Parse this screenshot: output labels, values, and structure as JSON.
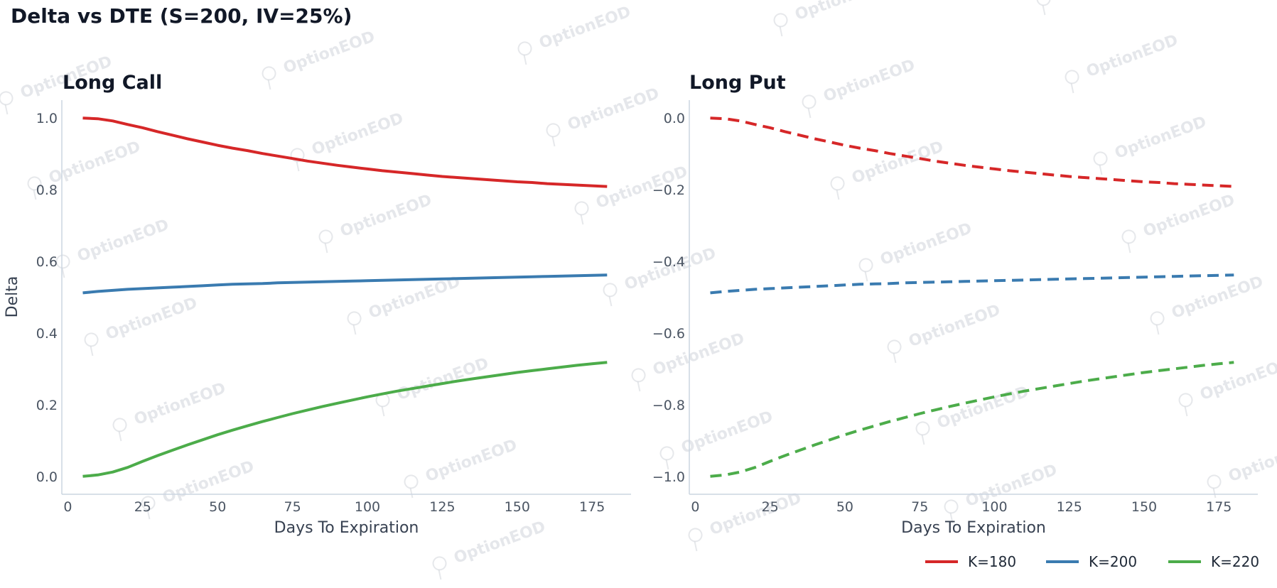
{
  "title": "Delta vs DTE (S=200, IV=25%)",
  "watermark": "OptionEOD",
  "legend": [
    {
      "label": "K=180",
      "color": "#d62728"
    },
    {
      "label": "K=200",
      "color": "#3a7bb0"
    },
    {
      "label": "K=220",
      "color": "#4cac4a"
    }
  ],
  "chart_data": [
    {
      "type": "line",
      "title": "Long Call",
      "xlabel": "Days To Expiration",
      "ylabel": "Delta",
      "xlim": [
        -2,
        188
      ],
      "ylim": [
        -0.05,
        1.05
      ],
      "xticks": [
        0,
        25,
        50,
        75,
        100,
        125,
        150,
        175
      ],
      "xtick_labels": [
        "0",
        "25",
        "50",
        "75",
        "100",
        "125",
        "150",
        "175"
      ],
      "yticks": [
        0.0,
        0.2,
        0.4,
        0.6,
        0.8,
        1.0
      ],
      "ytick_labels": [
        "0.0",
        "0.2",
        "0.4",
        "0.6",
        "0.8",
        "1.0"
      ],
      "grid": false,
      "x": [
        5,
        10,
        15,
        20,
        25,
        30,
        35,
        40,
        45,
        50,
        55,
        60,
        65,
        70,
        75,
        80,
        85,
        90,
        95,
        100,
        105,
        110,
        115,
        120,
        125,
        130,
        135,
        140,
        145,
        150,
        155,
        160,
        165,
        170,
        175,
        180
      ],
      "series": [
        {
          "name": "K=180",
          "style": "solid",
          "values": [
            1.0,
            0.998,
            0.992,
            0.982,
            0.973,
            0.962,
            0.952,
            0.942,
            0.933,
            0.924,
            0.916,
            0.909,
            0.901,
            0.894,
            0.887,
            0.88,
            0.874,
            0.868,
            0.863,
            0.858,
            0.853,
            0.849,
            0.845,
            0.841,
            0.837,
            0.834,
            0.831,
            0.828,
            0.825,
            0.822,
            0.82,
            0.817,
            0.815,
            0.813,
            0.811,
            0.809
          ]
        },
        {
          "name": "K=200",
          "style": "solid",
          "values": [
            0.512,
            0.516,
            0.519,
            0.522,
            0.524,
            0.526,
            0.528,
            0.53,
            0.532,
            0.534,
            0.536,
            0.537,
            0.538,
            0.54,
            0.541,
            0.542,
            0.543,
            0.544,
            0.545,
            0.546,
            0.547,
            0.548,
            0.549,
            0.55,
            0.551,
            0.552,
            0.553,
            0.554,
            0.555,
            0.556,
            0.557,
            0.558,
            0.559,
            0.56,
            0.561,
            0.562
          ]
        },
        {
          "name": "K=220",
          "style": "solid",
          "values": [
            0.0,
            0.004,
            0.012,
            0.025,
            0.042,
            0.058,
            0.073,
            0.088,
            0.102,
            0.116,
            0.129,
            0.141,
            0.153,
            0.164,
            0.175,
            0.185,
            0.195,
            0.204,
            0.213,
            0.222,
            0.23,
            0.238,
            0.245,
            0.252,
            0.259,
            0.266,
            0.272,
            0.278,
            0.284,
            0.29,
            0.295,
            0.3,
            0.305,
            0.31,
            0.314,
            0.318
          ]
        }
      ]
    },
    {
      "type": "line",
      "title": "Long Put",
      "xlabel": "Days To Expiration",
      "ylabel": "",
      "xlim": [
        -2,
        188
      ],
      "ylim": [
        -1.05,
        0.05
      ],
      "xticks": [
        0,
        25,
        50,
        75,
        100,
        125,
        150,
        175
      ],
      "xtick_labels": [
        "0",
        "25",
        "50",
        "75",
        "100",
        "125",
        "150",
        "175"
      ],
      "yticks": [
        -1.0,
        -0.8,
        -0.6,
        -0.4,
        -0.2,
        0.0
      ],
      "ytick_labels": [
        "−1.0",
        "−0.8",
        "−0.6",
        "−0.4",
        "−0.2",
        "0.0"
      ],
      "grid": false,
      "x": [
        5,
        10,
        15,
        20,
        25,
        30,
        35,
        40,
        45,
        50,
        55,
        60,
        65,
        70,
        75,
        80,
        85,
        90,
        95,
        100,
        105,
        110,
        115,
        120,
        125,
        130,
        135,
        140,
        145,
        150,
        155,
        160,
        165,
        170,
        175,
        180
      ],
      "series": [
        {
          "name": "K=180",
          "style": "dashed",
          "values": [
            0.0,
            -0.002,
            -0.008,
            -0.018,
            -0.027,
            -0.038,
            -0.048,
            -0.058,
            -0.067,
            -0.076,
            -0.084,
            -0.091,
            -0.099,
            -0.106,
            -0.113,
            -0.12,
            -0.126,
            -0.132,
            -0.137,
            -0.142,
            -0.147,
            -0.151,
            -0.155,
            -0.159,
            -0.163,
            -0.166,
            -0.169,
            -0.172,
            -0.175,
            -0.178,
            -0.18,
            -0.183,
            -0.185,
            -0.187,
            -0.189,
            -0.191
          ]
        },
        {
          "name": "K=200",
          "style": "dashed",
          "values": [
            -0.488,
            -0.484,
            -0.481,
            -0.478,
            -0.476,
            -0.474,
            -0.472,
            -0.47,
            -0.468,
            -0.466,
            -0.464,
            -0.463,
            -0.462,
            -0.46,
            -0.459,
            -0.458,
            -0.457,
            -0.456,
            -0.455,
            -0.454,
            -0.453,
            -0.452,
            -0.451,
            -0.45,
            -0.449,
            -0.448,
            -0.447,
            -0.446,
            -0.445,
            -0.444,
            -0.443,
            -0.442,
            -0.441,
            -0.44,
            -0.439,
            -0.438
          ]
        },
        {
          "name": "K=220",
          "style": "dashed",
          "values": [
            -1.0,
            -0.996,
            -0.988,
            -0.975,
            -0.958,
            -0.942,
            -0.927,
            -0.912,
            -0.898,
            -0.884,
            -0.871,
            -0.859,
            -0.847,
            -0.836,
            -0.825,
            -0.815,
            -0.805,
            -0.796,
            -0.787,
            -0.778,
            -0.77,
            -0.762,
            -0.755,
            -0.748,
            -0.741,
            -0.734,
            -0.728,
            -0.722,
            -0.716,
            -0.71,
            -0.705,
            -0.7,
            -0.695,
            -0.69,
            -0.686,
            -0.682
          ]
        }
      ]
    }
  ]
}
